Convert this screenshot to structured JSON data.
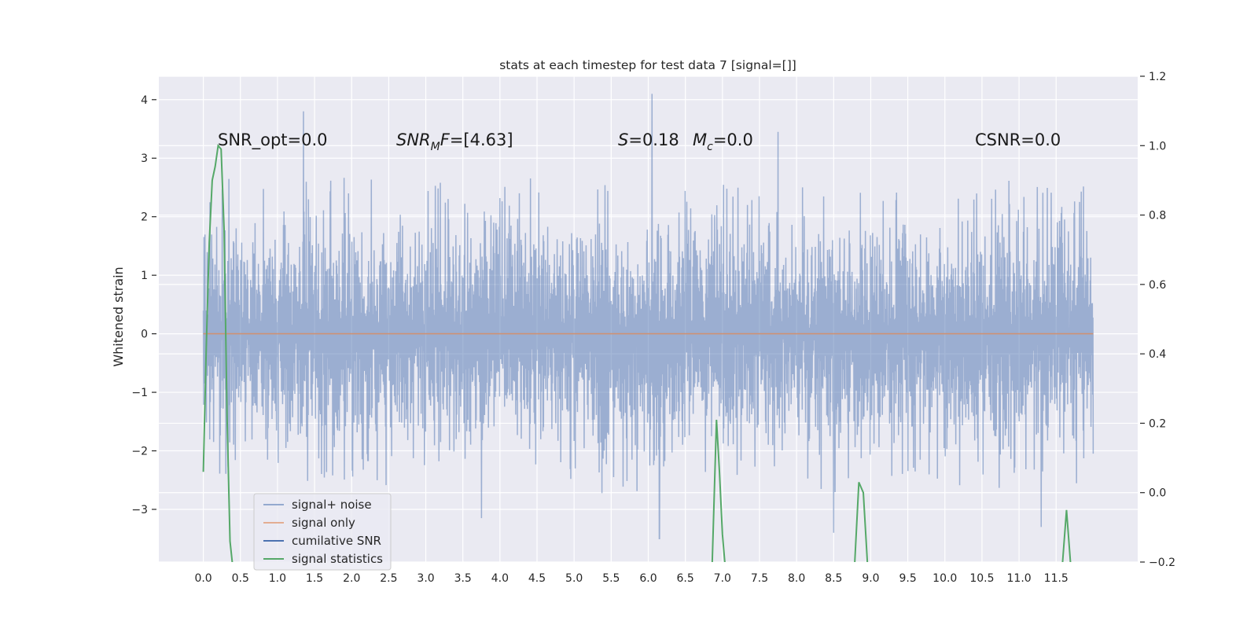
{
  "chart_data": {
    "type": "line",
    "title": "stats at each timestep for test data 7 [signal=[]]",
    "ylabel": "Whitened strain",
    "xlim": [
      -0.6,
      12.6
    ],
    "ylim": [
      -3.9,
      4.4
    ],
    "y2lim": [
      -0.2,
      1.2
    ],
    "grid": true,
    "xticks": [
      0.0,
      0.5,
      1.0,
      1.5,
      2.0,
      2.5,
      3.0,
      3.5,
      4.0,
      4.5,
      5.0,
      5.5,
      6.0,
      6.5,
      7.0,
      7.5,
      8.0,
      8.5,
      9.0,
      9.5,
      10.0,
      10.5,
      11.0,
      11.5
    ],
    "xtick_labels": [
      "0.0",
      "0.5",
      "1.0",
      "1.5",
      "2.0",
      "2.5",
      "3.0",
      "3.5",
      "4.0",
      "4.5",
      "5.0",
      "5.5",
      "6.0",
      "6.5",
      "7.0",
      "7.5",
      "8.0",
      "8.5",
      "9.0",
      "9.5",
      "10.0",
      "10.5",
      "11.0",
      "11.5"
    ],
    "yticks": [
      -3,
      -2,
      -1,
      0,
      1,
      2,
      3,
      4
    ],
    "ytick_labels": [
      "−3",
      "−2",
      "−1",
      "0",
      "1",
      "2",
      "3",
      "4"
    ],
    "y2ticks": [
      -0.2,
      0.0,
      0.2,
      0.4,
      0.6,
      0.8,
      1.0,
      1.2
    ],
    "y2tick_labels": [
      "−0.2",
      "0.0",
      "0.2",
      "0.4",
      "0.6",
      "0.8",
      "1.0",
      "1.2"
    ],
    "legend_position": "lower-left",
    "series": [
      {
        "name": "signal+ noise",
        "axis": "left",
        "color": "#4c72b0",
        "opacity": 0.5,
        "x_range": [
          0.0,
          12.0
        ],
        "envelope_upper": 2.5,
        "envelope_lower": -2.4,
        "notable_peaks": [
          {
            "x": 1.35,
            "y": 3.8
          },
          {
            "x": 6.05,
            "y": 4.1
          },
          {
            "x": 7.75,
            "y": 3.45
          },
          {
            "x": 6.15,
            "y": -3.5
          },
          {
            "x": 3.75,
            "y": -3.15
          },
          {
            "x": 8.5,
            "y": -3.4
          },
          {
            "x": 11.3,
            "y": -3.3
          }
        ]
      },
      {
        "name": "signal only",
        "axis": "left",
        "color": "#dd8452",
        "x": [
          0.0,
          12.0
        ],
        "y": [
          0.0,
          0.0
        ]
      },
      {
        "name": "cumilative SNR",
        "axis": "right",
        "color": "#4c72b0",
        "x": [],
        "y": []
      },
      {
        "name": "signal statistics",
        "axis": "right",
        "color": "#55a868",
        "segments": [
          {
            "x": [
              0.0,
              0.04,
              0.08,
              0.12,
              0.16,
              0.2,
              0.24,
              0.28,
              0.32,
              0.36,
              0.4
            ],
            "y": [
              0.06,
              0.42,
              0.72,
              0.9,
              0.94,
              1.0,
              0.99,
              0.76,
              0.22,
              -0.14,
              -0.22
            ]
          },
          {
            "x": [
              6.86,
              6.92,
              6.96,
              7.0,
              7.04
            ],
            "y": [
              -0.22,
              0.21,
              0.06,
              -0.12,
              -0.22
            ]
          },
          {
            "x": [
              8.78,
              8.84,
              8.9,
              8.96
            ],
            "y": [
              -0.22,
              0.03,
              0.0,
              -0.22
            ]
          },
          {
            "x": [
              11.58,
              11.64,
              11.7
            ],
            "y": [
              -0.22,
              -0.05,
              -0.22
            ]
          }
        ]
      }
    ],
    "annotations": {
      "snr_opt": "SNR_opt=0.0",
      "snr_mf_base": "SNR",
      "snr_mf_sub": "M",
      "snr_mf_tail": "F=[4.63]",
      "s_base": "S",
      "s_tail": "=0.18",
      "mc_base": "M",
      "mc_sub": "c",
      "mc_tail": "=0.0",
      "csnr": "CSNR=0.0"
    },
    "legend": [
      {
        "label": "signal+ noise",
        "color": "#4c72b0",
        "alpha": 0.55
      },
      {
        "label": "signal only",
        "color": "#dd8452",
        "alpha": 0.6
      },
      {
        "label": "cumilative SNR",
        "color": "#4c72b0",
        "alpha": 1.0
      },
      {
        "label": "signal statistics",
        "color": "#55a868",
        "alpha": 1.0
      }
    ]
  },
  "colors": {
    "axes_bg": "#eaeaf2",
    "grid": "#ffffff",
    "text": "#262626"
  }
}
